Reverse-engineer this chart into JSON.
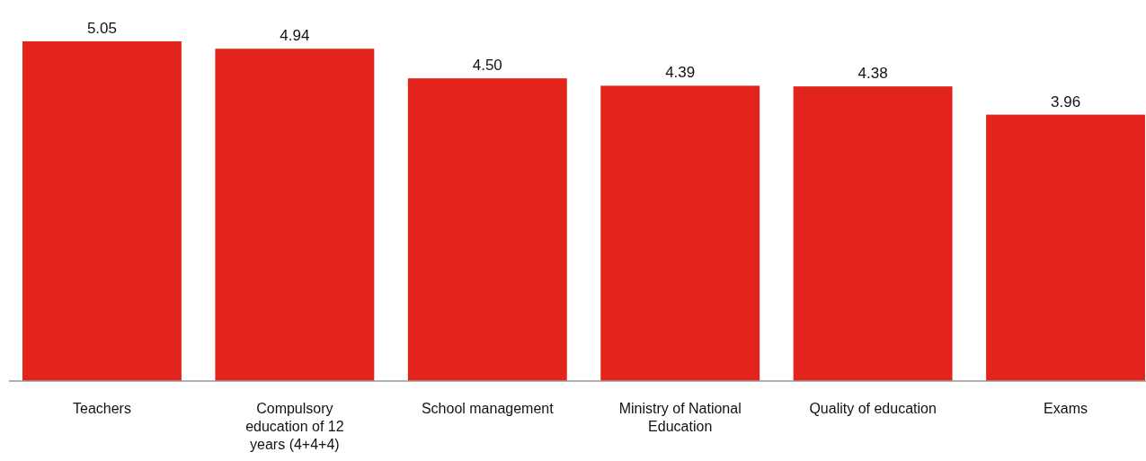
{
  "chart_data": {
    "type": "bar",
    "categories": [
      "Teachers",
      "Compulsory education of 12 years (4+4+4)",
      "School management",
      "Ministry of National Education",
      "Quality of education",
      "Exams"
    ],
    "values": [
      5.05,
      4.94,
      4.5,
      4.39,
      4.38,
      3.96
    ],
    "value_labels": [
      "5.05",
      "4.94",
      "4.50",
      "4.39",
      "4.38",
      "3.96"
    ],
    "color": "#e3241d",
    "tick_labels": "x",
    "grid": false
  }
}
